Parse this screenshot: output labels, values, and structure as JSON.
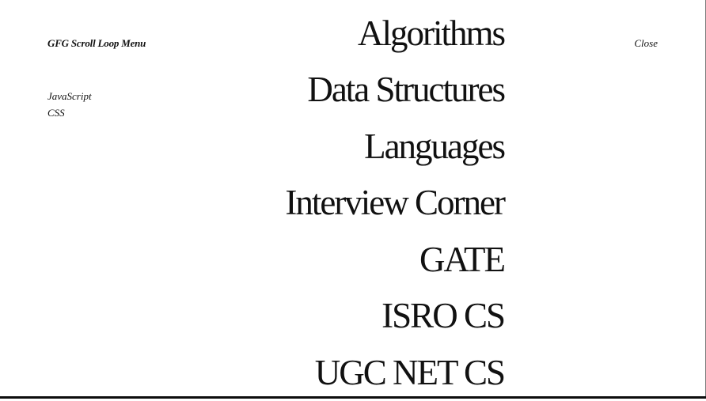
{
  "header": {
    "brand": "GFG Scroll Loop Menu",
    "close_label": "Close"
  },
  "sidebar": {
    "links": [
      {
        "label": "JavaScript"
      },
      {
        "label": "CSS"
      }
    ]
  },
  "menu": {
    "items": [
      {
        "label": "Algorithms"
      },
      {
        "label": "Data Structures"
      },
      {
        "label": "Languages"
      },
      {
        "label": "Interview Corner"
      },
      {
        "label": "GATE"
      },
      {
        "label": "ISRO CS"
      },
      {
        "label": "UGC NET CS"
      }
    ]
  },
  "colors": {
    "background": "#ffffff",
    "text": "#111111",
    "bottom_bar": "#0d0d0d"
  }
}
